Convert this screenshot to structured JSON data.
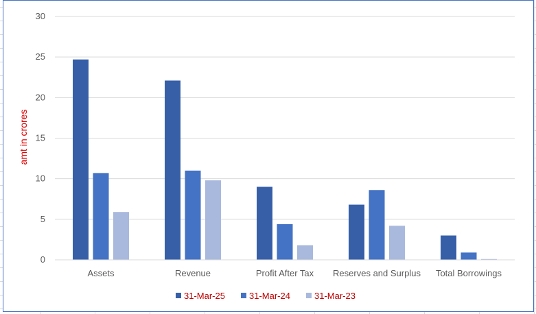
{
  "chart_data": {
    "type": "bar",
    "categories": [
      "Assets",
      "Revenue",
      "Profit After Tax",
      "Reserves and Surplus",
      "Total Borrowings"
    ],
    "series": [
      {
        "name": "31-Mar-25",
        "color": "#365fa8",
        "values": [
          24.7,
          22.1,
          9.0,
          6.8,
          3.0
        ]
      },
      {
        "name": "31-Mar-24",
        "color": "#4472c4",
        "values": [
          10.7,
          11.0,
          4.4,
          8.6,
          0.9
        ]
      },
      {
        "name": "31-Mar-23",
        "color": "#a9b9dd",
        "values": [
          5.9,
          9.8,
          1.8,
          4.2,
          0.1
        ]
      }
    ],
    "ylabel": "amt in crores",
    "xlabel": "",
    "ylim": [
      0,
      30
    ],
    "yticks": [
      "0",
      "5",
      "10",
      "15",
      "20",
      "25",
      "30"
    ],
    "grid": true,
    "legend_position": "bottom"
  }
}
